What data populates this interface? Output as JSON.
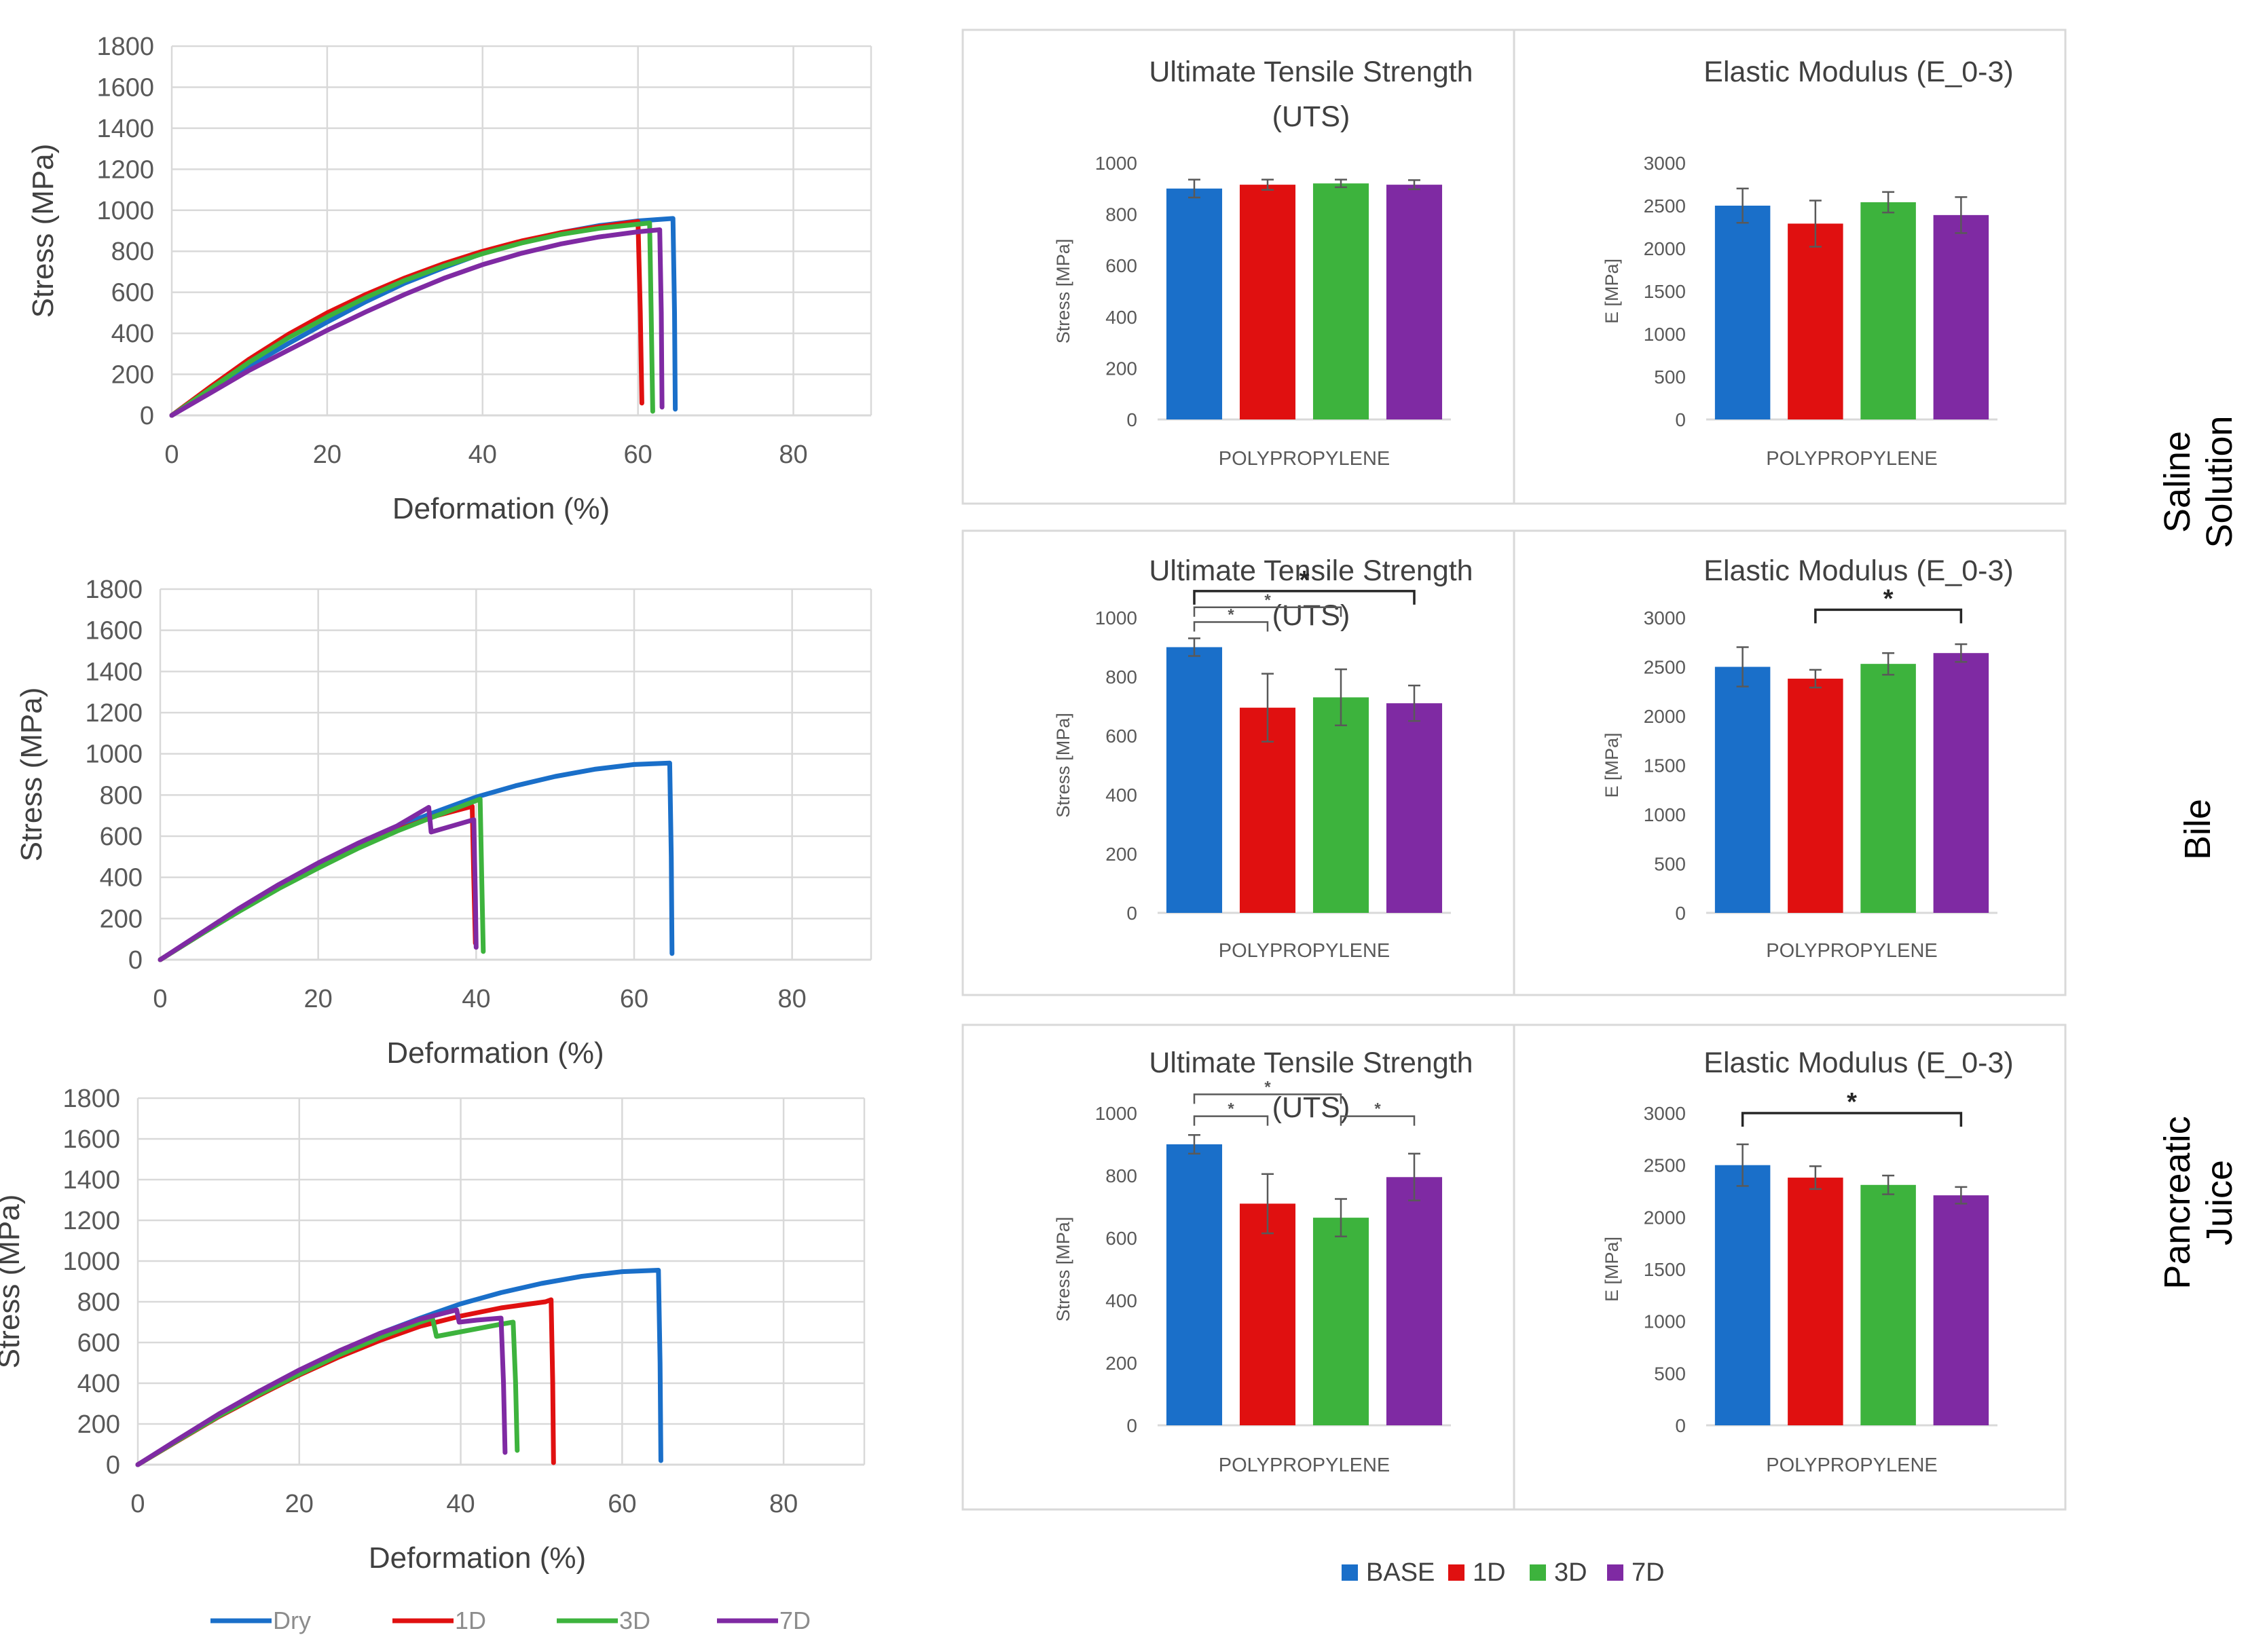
{
  "colors": {
    "base": "#1a6fc9",
    "d1": "#e01010",
    "d3": "#3db33d",
    "d7": "#7f2aa3",
    "grid": "#d9d9d9",
    "frame": "#d9d9d9",
    "axisText": "#595959",
    "labelText": "#404040",
    "errorBar": "#595959",
    "sigBracket": "#262626"
  },
  "row_labels": [
    [
      "Saline",
      "Solution"
    ],
    [
      "Bile"
    ],
    [
      "Pancreatic",
      "Juice"
    ]
  ],
  "line_legend": [
    "Dry",
    "1D",
    "3D",
    "7D"
  ],
  "bar_legend": [
    "BASE",
    "1D",
    "3D",
    "7D"
  ],
  "chart_data": [
    {
      "type": "line",
      "row": "Saline Solution",
      "xlabel": "Deformation (%)",
      "ylabel": "Stress (MPa)",
      "xlim": [
        0,
        90
      ],
      "ylim": [
        0,
        1800
      ],
      "xticks": [
        0,
        20,
        40,
        60,
        80
      ],
      "yticks": [
        0,
        200,
        400,
        600,
        800,
        1000,
        1200,
        1400,
        1600,
        1800
      ],
      "series": [
        {
          "name": "Dry",
          "x": [
            0,
            5,
            10,
            15,
            20,
            25,
            30,
            35,
            40,
            45,
            50,
            55,
            60,
            64.5,
            64.7,
            64.8
          ],
          "y": [
            0,
            120,
            240,
            350,
            455,
            555,
            645,
            720,
            790,
            845,
            890,
            925,
            948,
            960,
            500,
            30
          ]
        },
        {
          "name": "1D",
          "x": [
            0,
            5,
            10,
            15,
            20,
            25,
            30,
            35,
            40,
            45,
            50,
            55,
            60,
            60.3,
            60.5
          ],
          "y": [
            0,
            140,
            275,
            395,
            500,
            590,
            670,
            740,
            800,
            850,
            890,
            920,
            945,
            500,
            60
          ]
        },
        {
          "name": "3D",
          "x": [
            0,
            5,
            10,
            15,
            20,
            25,
            30,
            35,
            40,
            45,
            50,
            55,
            61.5,
            61.7,
            61.9
          ],
          "y": [
            0,
            130,
            260,
            378,
            480,
            575,
            658,
            728,
            788,
            840,
            882,
            912,
            938,
            500,
            20
          ]
        },
        {
          "name": "7D",
          "x": [
            0,
            5,
            10,
            15,
            20,
            25,
            30,
            35,
            40,
            45,
            50,
            55,
            60,
            62.8,
            63.0,
            63.1
          ],
          "y": [
            0,
            110,
            220,
            318,
            415,
            505,
            590,
            668,
            735,
            790,
            835,
            870,
            895,
            905,
            500,
            40
          ]
        }
      ]
    },
    {
      "type": "line",
      "row": "Bile",
      "xlabel": "Deformation (%)",
      "ylabel": "Stress (MPa)",
      "xlim": [
        0,
        90
      ],
      "ylim": [
        0,
        1800
      ],
      "xticks": [
        0,
        20,
        40,
        60,
        80
      ],
      "yticks": [
        0,
        200,
        400,
        600,
        800,
        1000,
        1200,
        1400,
        1600,
        1800
      ],
      "series": [
        {
          "name": "Dry",
          "x": [
            0,
            5,
            10,
            15,
            20,
            25,
            30,
            35,
            40,
            45,
            50,
            55,
            60,
            64.5,
            64.7,
            64.8
          ],
          "y": [
            0,
            120,
            240,
            350,
            455,
            555,
            645,
            720,
            790,
            845,
            890,
            925,
            948,
            955,
            500,
            30
          ]
        },
        {
          "name": "1D",
          "x": [
            0,
            5,
            10,
            15,
            20,
            25,
            30,
            35,
            39.5,
            39.7,
            39.9
          ],
          "y": [
            0,
            120,
            240,
            350,
            450,
            545,
            630,
            700,
            745,
            400,
            80
          ]
        },
        {
          "name": "3D",
          "x": [
            0,
            5,
            10,
            15,
            20,
            25,
            30,
            35,
            40.5,
            40.7,
            40.9
          ],
          "y": [
            0,
            120,
            235,
            345,
            445,
            540,
            625,
            700,
            780,
            400,
            40
          ]
        },
        {
          "name": "7D",
          "x": [
            0,
            5,
            10,
            15,
            20,
            25,
            30,
            34,
            34.3,
            37,
            39.7,
            39.9,
            40.0
          ],
          "y": [
            0,
            125,
            250,
            365,
            470,
            565,
            650,
            740,
            620,
            650,
            680,
            300,
            60
          ]
        }
      ]
    },
    {
      "type": "line",
      "row": "Pancreatic Juice",
      "xlabel": "Deformation (%)",
      "ylabel": "Stress (MPa)",
      "xlim": [
        0,
        90
      ],
      "ylim": [
        0,
        1800
      ],
      "xticks": [
        0,
        20,
        40,
        60,
        80
      ],
      "yticks": [
        0,
        200,
        400,
        600,
        800,
        1000,
        1200,
        1400,
        1600,
        1800
      ],
      "series": [
        {
          "name": "Dry",
          "x": [
            0,
            5,
            10,
            15,
            20,
            25,
            30,
            35,
            40,
            45,
            50,
            55,
            60,
            64.5,
            64.7,
            64.8
          ],
          "y": [
            0,
            120,
            240,
            350,
            455,
            555,
            645,
            720,
            790,
            845,
            890,
            925,
            948,
            955,
            500,
            20
          ]
        },
        {
          "name": "1D",
          "x": [
            0,
            5,
            10,
            15,
            20,
            25,
            30,
            35,
            40,
            45,
            50.5,
            51.2,
            51.4,
            51.5
          ],
          "y": [
            0,
            118,
            235,
            340,
            440,
            530,
            610,
            680,
            730,
            770,
            800,
            810,
            400,
            10
          ]
        },
        {
          "name": "3D",
          "x": [
            0,
            5,
            10,
            15,
            20,
            25,
            30,
            35,
            36.5,
            37,
            41,
            45,
            46.5,
            46.8,
            47.0
          ],
          "y": [
            0,
            120,
            238,
            345,
            445,
            540,
            625,
            700,
            720,
            630,
            660,
            690,
            700,
            400,
            70
          ]
        },
        {
          "name": "7D",
          "x": [
            0,
            5,
            10,
            15,
            20,
            25,
            30,
            35,
            39.5,
            39.8,
            42,
            45,
            45.3,
            45.5
          ],
          "y": [
            0,
            125,
            248,
            360,
            465,
            560,
            645,
            715,
            760,
            700,
            710,
            720,
            400,
            60
          ]
        }
      ]
    },
    {
      "type": "bar",
      "row": "Saline Solution",
      "title": [
        "Ultimate Tensile Strength",
        "(UTS)"
      ],
      "xlabel": "POLYPROPYLENE",
      "ylabel": "Stress [MPa]",
      "ylim": [
        0,
        1000
      ],
      "yticks": [
        0,
        200,
        400,
        600,
        800,
        1000
      ],
      "categories": [
        "BASE",
        "1D",
        "3D",
        "7D"
      ],
      "values": [
        900,
        915,
        920,
        915
      ],
      "errors": [
        35,
        20,
        15,
        18
      ],
      "significance": []
    },
    {
      "type": "bar",
      "row": "Saline Solution",
      "title": [
        "Elastic Modulus (E_0-3)"
      ],
      "xlabel": "POLYPROPYLENE",
      "ylabel": "E [MPa]",
      "ylim": [
        0,
        3000
      ],
      "yticks": [
        0,
        500,
        1000,
        1500,
        2000,
        2500,
        3000
      ],
      "categories": [
        "BASE",
        "1D",
        "3D",
        "7D"
      ],
      "values": [
        2500,
        2290,
        2540,
        2390
      ],
      "errors": [
        200,
        270,
        120,
        210
      ],
      "significance": []
    },
    {
      "type": "bar",
      "row": "Bile",
      "title": [
        "Ultimate Tensile Strength",
        "(UTS)"
      ],
      "xlabel": "POLYPROPYLENE",
      "ylabel": "Stress [MPa]",
      "ylim": [
        0,
        1000
      ],
      "yticks": [
        0,
        200,
        400,
        600,
        800,
        1000
      ],
      "categories": [
        "BASE",
        "1D",
        "3D",
        "7D"
      ],
      "values": [
        900,
        695,
        730,
        710
      ],
      "errors": [
        30,
        115,
        95,
        60
      ],
      "significance": [
        {
          "from": 0,
          "to": 3,
          "level": 1090,
          "label": "*",
          "large": true
        },
        {
          "from": 0,
          "to": 2,
          "level": 1035,
          "label": "*",
          "large": false
        },
        {
          "from": 0,
          "to": 1,
          "level": 985,
          "label": "*",
          "large": false
        }
      ]
    },
    {
      "type": "bar",
      "row": "Bile",
      "title": [
        "Elastic Modulus (E_0-3)"
      ],
      "xlabel": "POLYPROPYLENE",
      "ylabel": "E [MPa]",
      "ylim": [
        0,
        3000
      ],
      "yticks": [
        0,
        500,
        1000,
        1500,
        2000,
        2500,
        3000
      ],
      "categories": [
        "BASE",
        "1D",
        "3D",
        "7D"
      ],
      "values": [
        2500,
        2380,
        2530,
        2640
      ],
      "errors": [
        200,
        90,
        110,
        90
      ],
      "significance": [
        {
          "from": 1,
          "to": 3,
          "level": 3080,
          "label": "*",
          "large": true
        }
      ]
    },
    {
      "type": "bar",
      "row": "Pancreatic Juice",
      "title": [
        "Ultimate Tensile Strength",
        "(UTS)"
      ],
      "xlabel": "POLYPROPYLENE",
      "ylabel": "Stress [MPa]",
      "ylim": [
        0,
        1000
      ],
      "yticks": [
        0,
        200,
        400,
        600,
        800,
        1000
      ],
      "categories": [
        "BASE",
        "1D",
        "3D",
        "7D"
      ],
      "values": [
        900,
        710,
        665,
        795
      ],
      "errors": [
        30,
        95,
        60,
        75
      ],
      "significance": [
        {
          "from": 0,
          "to": 2,
          "level": 1060,
          "label": "*",
          "large": false
        },
        {
          "from": 0,
          "to": 1,
          "level": 990,
          "label": "*",
          "large": false
        },
        {
          "from": 2,
          "to": 3,
          "level": 990,
          "label": "*",
          "large": false
        }
      ]
    },
    {
      "type": "bar",
      "row": "Pancreatic Juice",
      "title": [
        "Elastic Modulus (E_0-3)"
      ],
      "xlabel": "POLYPROPYLENE",
      "ylabel": "E [MPa]",
      "ylim": [
        0,
        3000
      ],
      "yticks": [
        0,
        500,
        1000,
        1500,
        2000,
        2500,
        3000
      ],
      "categories": [
        "BASE",
        "1D",
        "3D",
        "7D"
      ],
      "values": [
        2500,
        2380,
        2310,
        2210
      ],
      "errors": [
        200,
        110,
        90,
        80
      ],
      "significance": [
        {
          "from": 0,
          "to": 3,
          "level": 3000,
          "label": "*",
          "large": true
        }
      ]
    }
  ]
}
